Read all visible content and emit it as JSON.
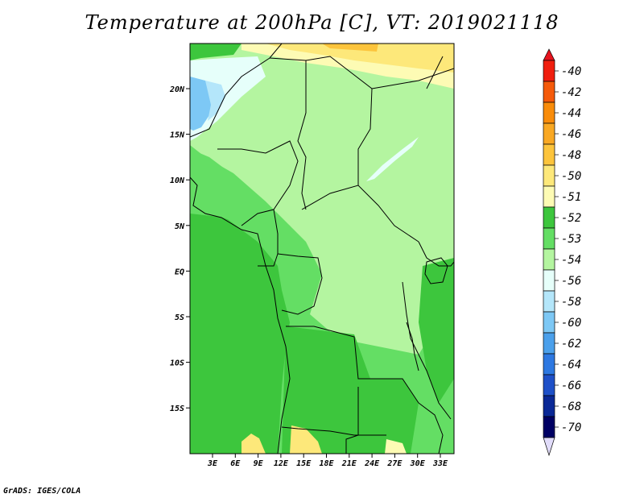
{
  "title": "Temperature at 200hPa [C], VT: 2019021118",
  "credit": "GrADS: IGES/COLA",
  "map": {
    "lat_labels": [
      "20N",
      "15N",
      "10N",
      "5N",
      "EQ",
      "5S",
      "10S",
      "15S"
    ],
    "lon_labels": [
      "3E",
      "6E",
      "9E",
      "12E",
      "15E",
      "18E",
      "21E",
      "24E",
      "27E",
      "30E",
      "33E"
    ]
  },
  "legend": {
    "levels": [
      "-40",
      "-42",
      "-44",
      "-46",
      "-48",
      "-50",
      "-51",
      "-52",
      "-53",
      "-54",
      "-56",
      "-58",
      "-60",
      "-62",
      "-64",
      "-66",
      "-68",
      "-70"
    ],
    "colors": [
      "#f01e0e",
      "#f55a0a",
      "#f98c0a",
      "#f9a823",
      "#fcc43c",
      "#fde87a",
      "#fdfbb4",
      "#3dc63d",
      "#64de64",
      "#b4f5a0",
      "#e6fffa",
      "#b4e6fa",
      "#7dc8f5",
      "#4ba0eb",
      "#2d78e1",
      "#1e50c8",
      "#0a2896",
      "#000064"
    ],
    "top_color": "#e6141e",
    "bottom_color": "#e1dcfa"
  }
}
